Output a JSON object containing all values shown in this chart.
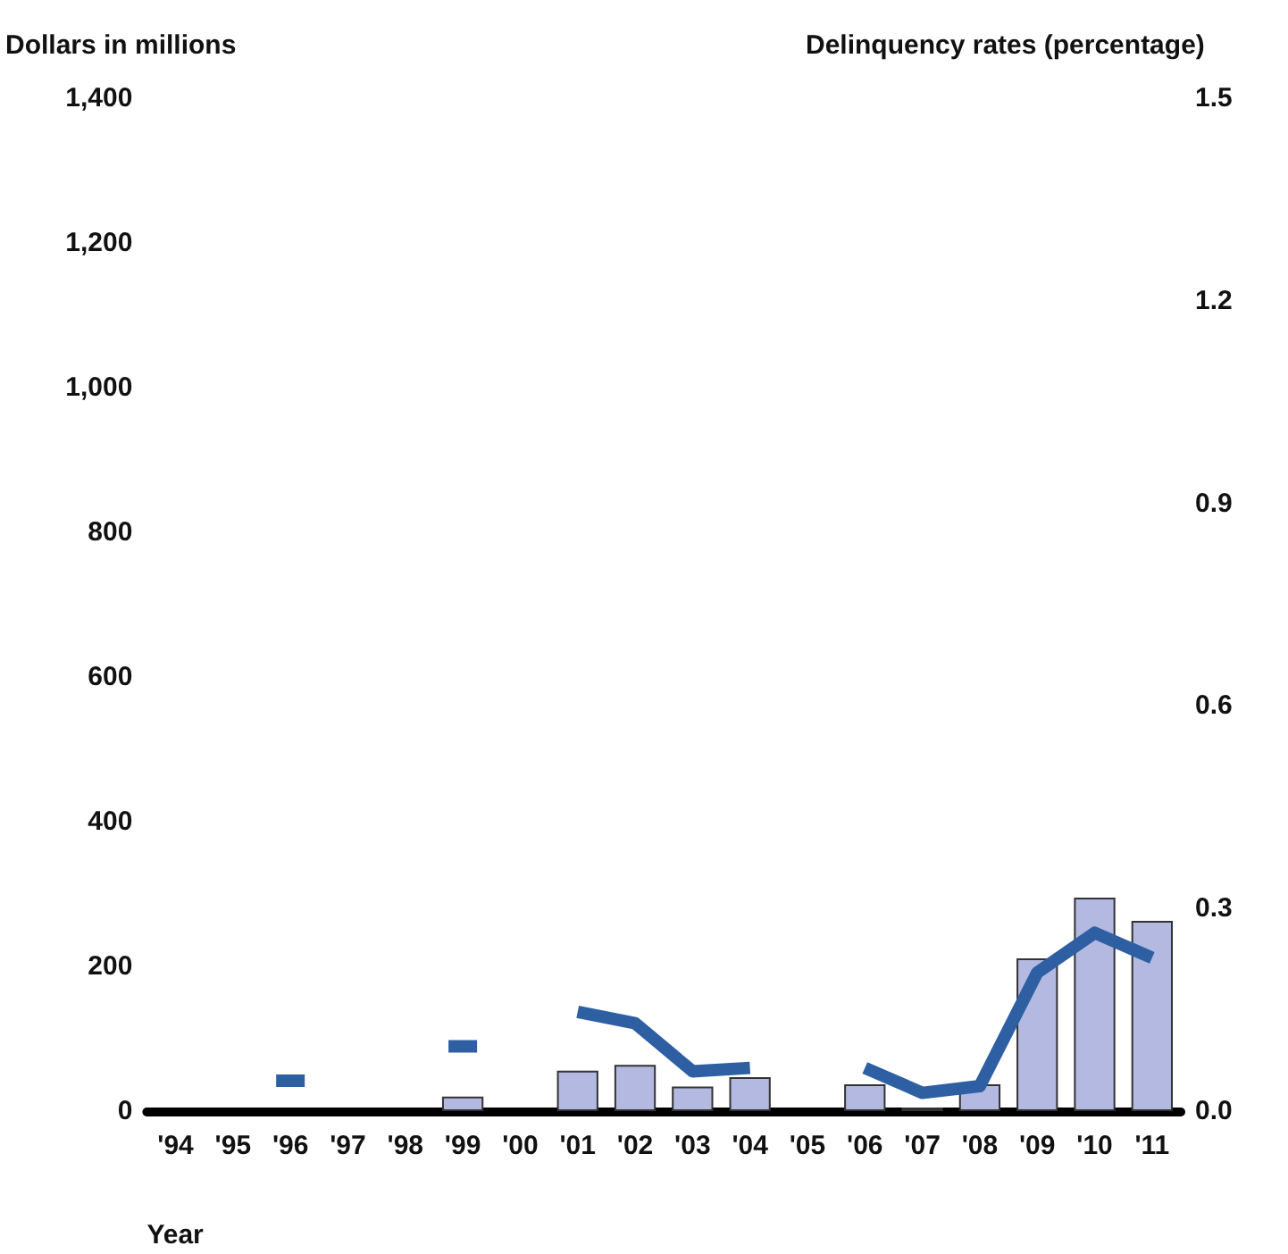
{
  "chart_data": {
    "type": "bar",
    "xlabel": "Year",
    "ylabel": "Dollars in millions",
    "y2label": "Delinquency rates (percentage)",
    "categories": [
      "'94",
      "'95",
      "'96",
      "'97",
      "'98",
      "'99",
      "'00",
      "'01",
      "'02",
      "'03",
      "'04",
      "'05",
      "'06",
      "'07",
      "'08",
      "'09",
      "'10",
      "'11"
    ],
    "series": [
      {
        "color": "#b3b9e0",
        "values": [
          null,
          null,
          null,
          null,
          null,
          20,
          null,
          56,
          64,
          34,
          47,
          null,
          37,
          5,
          37,
          211,
          295,
          263
        ]
      },
      {
        "type": "line",
        "axis": "y2",
        "color": "#2e5fa3",
        "values": [
          null,
          null,
          0.045,
          null,
          null,
          0.096,
          null,
          0.147,
          0.13,
          0.059,
          0.064,
          null,
          0.064,
          0.027,
          0.037,
          0.205,
          0.264,
          0.227
        ]
      }
    ],
    "ylim": [
      0,
      1400
    ],
    "yticks": [
      0,
      200,
      400,
      600,
      800,
      {
        "value": 1000,
        "label": "1,000"
      },
      {
        "value": 1200,
        "label": "1,200"
      },
      {
        "value": 1400,
        "label": "1,400"
      }
    ],
    "y2lim": [
      0,
      1.5
    ],
    "y2ticks": [
      {
        "value": 0,
        "label": "0.0"
      },
      {
        "value": 0.3,
        "label": "0.3"
      },
      {
        "value": 0.6,
        "label": "0.6"
      },
      {
        "value": 0.9,
        "label": "0.9"
      },
      {
        "value": 1.2,
        "label": "1.2"
      },
      {
        "value": 1.5,
        "label": "1.5"
      }
    ]
  }
}
